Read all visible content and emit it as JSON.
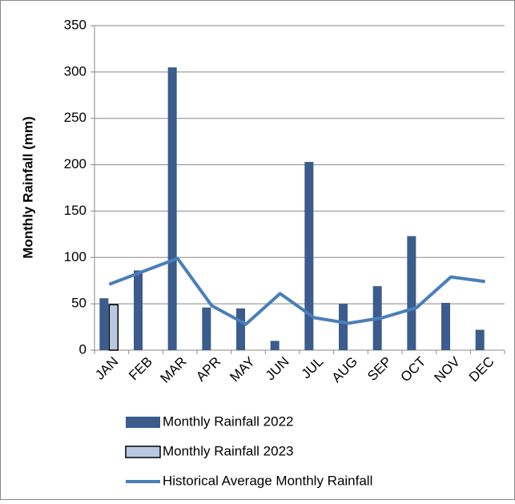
{
  "chart_data": {
    "type": "bar",
    "y_label": "Monthly Rainfall (mm)",
    "categories": [
      "JAN",
      "FEB",
      "MAR",
      "APR",
      "MAY",
      "JUN",
      "JUL",
      "AUG",
      "SEP",
      "OCT",
      "NOV",
      "DEC"
    ],
    "series": [
      {
        "name": "Monthly Rainfall 2022",
        "type": "bar",
        "color": "#3b5c8c",
        "values": [
          56,
          86,
          305,
          46,
          45,
          10,
          203,
          50,
          69,
          123,
          51,
          22
        ]
      },
      {
        "name": "Monthly Rainfall 2023",
        "type": "bar",
        "color": "#b9c9e3",
        "values": [
          49,
          null,
          null,
          null,
          null,
          null,
          null,
          null,
          null,
          null,
          null,
          null
        ]
      },
      {
        "name": "Historical Average Monthly Rainfall",
        "type": "line",
        "color": "#4a7ebb",
        "values": [
          71,
          85,
          99,
          48,
          28,
          61,
          35,
          29,
          35,
          46,
          79,
          74
        ]
      }
    ],
    "ylim": [
      0,
      350
    ],
    "yticks": [
      0,
      50,
      100,
      150,
      200,
      250,
      300,
      350
    ],
    "grid": true
  }
}
